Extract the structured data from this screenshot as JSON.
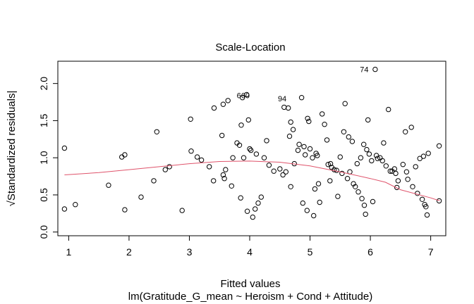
{
  "chart_data": {
    "type": "scatter",
    "title": "Scale-Location",
    "xlabel": "Fitted values",
    "subtitle": "lm(Gratitude_G_mean ~ Heroism + Cond + Attitude)",
    "ylabel": "√Standardized residuals|",
    "xlim": [
      0.82,
      7.25
    ],
    "ylim": [
      -0.05,
      2.3
    ],
    "xticks": [
      "1",
      "2",
      "3",
      "4",
      "5",
      "6",
      "7"
    ],
    "yticks": [
      "0.0",
      "0.5",
      "1.0",
      "1.5",
      "2.0"
    ],
    "grid": false,
    "point_color": "#000000",
    "smooth_color": "#DF536B",
    "smooth": [
      [
        0.93,
        0.77
      ],
      [
        1.5,
        0.8
      ],
      [
        2.0,
        0.84
      ],
      [
        2.5,
        0.88
      ],
      [
        3.0,
        0.92
      ],
      [
        3.5,
        0.95
      ],
      [
        4.0,
        0.955
      ],
      [
        4.5,
        0.94
      ],
      [
        5.0,
        0.89
      ],
      [
        5.5,
        0.81
      ],
      [
        6.0,
        0.72
      ],
      [
        6.25,
        0.67
      ],
      [
        6.5,
        0.57
      ],
      [
        7.0,
        0.46
      ],
      [
        7.15,
        0.42
      ]
    ],
    "labels": [
      {
        "text": "74",
        "x": 5.97,
        "y": 2.19
      },
      {
        "text": "660",
        "x": 4.0,
        "y": 1.84
      },
      {
        "text": "94",
        "x": 4.61,
        "y": 1.8
      }
    ],
    "points": [
      [
        0.93,
        1.13
      ],
      [
        0.93,
        0.31
      ],
      [
        1.11,
        0.37
      ],
      [
        1.66,
        0.63
      ],
      [
        1.88,
        1.01
      ],
      [
        1.93,
        1.04
      ],
      [
        1.93,
        0.3
      ],
      [
        2.2,
        0.47
      ],
      [
        2.41,
        0.69
      ],
      [
        2.46,
        1.35
      ],
      [
        2.6,
        0.84
      ],
      [
        2.67,
        0.88
      ],
      [
        2.88,
        0.29
      ],
      [
        3.02,
        1.52
      ],
      [
        3.03,
        1.09
      ],
      [
        3.13,
        1.01
      ],
      [
        3.2,
        0.97
      ],
      [
        3.33,
        0.88
      ],
      [
        3.4,
        0.69
      ],
      [
        3.41,
        1.67
      ],
      [
        3.54,
        1.3
      ],
      [
        3.56,
        1.72
      ],
      [
        3.56,
        0.77
      ],
      [
        3.58,
        0.72
      ],
      [
        3.6,
        0.84
      ],
      [
        3.64,
        1.77
      ],
      [
        3.7,
        0.62
      ],
      [
        3.72,
        1.0
      ],
      [
        3.79,
        1.2
      ],
      [
        3.83,
        1.17
      ],
      [
        3.85,
        0.46
      ],
      [
        3.86,
        1.44
      ],
      [
        3.88,
        1.81
      ],
      [
        3.9,
        1.0
      ],
      [
        3.95,
        1.85
      ],
      [
        3.96,
        0.28
      ],
      [
        3.98,
        1.51
      ],
      [
        4.0,
        1.12
      ],
      [
        4.02,
        1.1
      ],
      [
        4.05,
        0.2
      ],
      [
        4.09,
        0.31
      ],
      [
        4.11,
        1.05
      ],
      [
        4.14,
        0.39
      ],
      [
        4.19,
        0.47
      ],
      [
        4.24,
        1.0
      ],
      [
        4.28,
        1.23
      ],
      [
        4.32,
        0.9
      ],
      [
        4.4,
        0.82
      ],
      [
        4.5,
        0.85
      ],
      [
        4.55,
        0.77
      ],
      [
        4.57,
        1.68
      ],
      [
        4.6,
        0.81
      ],
      [
        4.64,
        1.67
      ],
      [
        4.68,
        1.48
      ],
      [
        4.68,
        0.61
      ],
      [
        4.74,
        0.92
      ],
      [
        4.8,
        1.1
      ],
      [
        4.86,
        1.81
      ],
      [
        4.88,
        0.39
      ],
      [
        4.9,
        1.15
      ],
      [
        4.92,
        1.04
      ],
      [
        4.95,
        0.29
      ],
      [
        4.96,
        1.53
      ],
      [
        4.98,
        1.49
      ],
      [
        5.0,
        1.12
      ],
      [
        5.04,
        1.0
      ],
      [
        5.06,
        0.22
      ],
      [
        5.1,
        1.06
      ],
      [
        5.12,
        1.03
      ],
      [
        5.16,
        0.4
      ],
      [
        5.2,
        1.59
      ],
      [
        5.24,
        1.45
      ],
      [
        5.28,
        1.24
      ],
      [
        5.3,
        0.91
      ],
      [
        5.33,
        0.69
      ],
      [
        5.36,
        0.87
      ],
      [
        5.4,
        0.84
      ],
      [
        5.44,
        0.83
      ],
      [
        5.5,
        1.01
      ],
      [
        5.53,
        0.79
      ],
      [
        5.56,
        1.35
      ],
      [
        5.58,
        1.73
      ],
      [
        5.62,
        0.72
      ],
      [
        5.66,
        0.81
      ],
      [
        5.7,
        1.22
      ],
      [
        5.72,
        0.65
      ],
      [
        5.75,
        0.61
      ],
      [
        5.8,
        0.54
      ],
      [
        5.84,
        1.0
      ],
      [
        5.86,
        0.45
      ],
      [
        5.89,
        1.18
      ],
      [
        5.92,
        0.24
      ],
      [
        5.94,
        1.11
      ],
      [
        5.96,
        1.51
      ],
      [
        5.98,
        1.05
      ],
      [
        6.04,
        0.41
      ],
      [
        6.08,
        2.19
      ],
      [
        6.1,
        1.03
      ],
      [
        6.12,
        0.99
      ],
      [
        6.16,
        1.0
      ],
      [
        6.2,
        0.96
      ],
      [
        6.26,
        0.89
      ],
      [
        6.3,
        1.65
      ],
      [
        6.33,
        0.82
      ],
      [
        6.36,
        0.82
      ],
      [
        6.4,
        0.85
      ],
      [
        6.42,
        0.79
      ],
      [
        6.46,
        0.69
      ],
      [
        6.58,
        1.35
      ],
      [
        6.6,
        0.81
      ],
      [
        6.62,
        0.71
      ],
      [
        6.68,
        1.41
      ],
      [
        6.7,
        0.61
      ],
      [
        6.75,
        0.88
      ],
      [
        6.82,
        0.99
      ],
      [
        6.86,
        0.44
      ],
      [
        6.88,
        1.02
      ],
      [
        6.9,
        0.37
      ],
      [
        6.92,
        0.34
      ],
      [
        6.94,
        0.23
      ],
      [
        6.96,
        1.06
      ],
      [
        7.14,
        1.16
      ],
      [
        7.14,
        0.42
      ],
      [
        4.66,
        1.29
      ],
      [
        4.72,
        1.38
      ],
      [
        4.82,
        1.18
      ],
      [
        5.08,
        0.58
      ],
      [
        5.14,
        0.65
      ],
      [
        5.34,
        0.92
      ],
      [
        5.46,
        0.48
      ],
      [
        5.64,
        1.28
      ],
      [
        5.78,
        0.92
      ],
      [
        5.9,
        0.36
      ],
      [
        6.02,
        0.96
      ],
      [
        6.22,
        1.2
      ],
      [
        6.44,
        0.6
      ],
      [
        6.54,
        0.91
      ],
      [
        6.78,
        0.52
      ]
    ]
  }
}
